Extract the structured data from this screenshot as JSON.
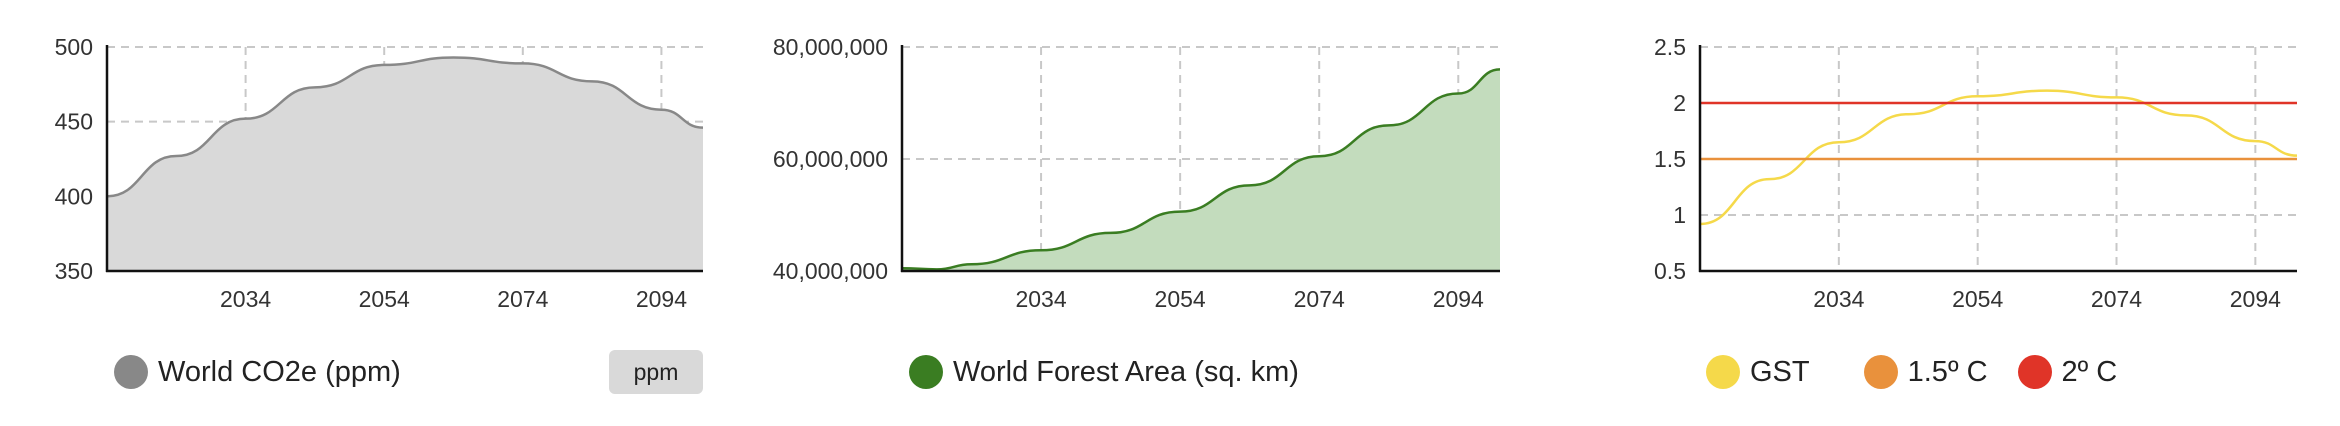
{
  "chart_data": [
    {
      "type": "area",
      "x_ticks": [
        "2034",
        "2054",
        "2074",
        "2094"
      ],
      "x_tick_values": [
        2034,
        2054,
        2074,
        2094
      ],
      "xlim": [
        2014,
        2100
      ],
      "y_ticks": [
        "350",
        "400",
        "450",
        "500"
      ],
      "y_tick_values": [
        350,
        400,
        450,
        500
      ],
      "ylim": [
        350,
        500
      ],
      "grid": true,
      "series": [
        {
          "name": "World CO2e (ppm)",
          "color": "#888888",
          "fill": "#d9d9d9",
          "x": [
            2014,
            2024,
            2034,
            2044,
            2054,
            2064,
            2074,
            2084,
            2094,
            2100
          ],
          "values": [
            400,
            427,
            452,
            473,
            488,
            493,
            489,
            477,
            458,
            446
          ]
        }
      ],
      "unit_button": "ppm"
    },
    {
      "type": "area",
      "x_ticks": [
        "2034",
        "2054",
        "2074",
        "2094"
      ],
      "x_tick_values": [
        2034,
        2054,
        2074,
        2094
      ],
      "xlim": [
        2014,
        2100
      ],
      "y_ticks": [
        "40,000,000",
        "60,000,000",
        "80,000,000"
      ],
      "y_tick_values": [
        40000000,
        60000000,
        80000000
      ],
      "ylim": [
        40000000,
        80000000
      ],
      "grid": true,
      "series": [
        {
          "name": "World Forest Area (sq. km)",
          "color": "#3a7d22",
          "fill": "#c3dcbd",
          "x": [
            2014,
            2019,
            2024,
            2034,
            2044,
            2054,
            2064,
            2074,
            2084,
            2094,
            2100
          ],
          "values": [
            40500000,
            40300000,
            41200000,
            43700000,
            46800000,
            50600000,
            55300000,
            60500000,
            66000000,
            71700000,
            76000000
          ]
        }
      ]
    },
    {
      "type": "line",
      "x_ticks": [
        "2034",
        "2054",
        "2074",
        "2094"
      ],
      "x_tick_values": [
        2034,
        2054,
        2074,
        2094
      ],
      "xlim": [
        2014,
        2100
      ],
      "y_ticks": [
        "0.5",
        "1",
        "1.5",
        "2",
        "2.5"
      ],
      "y_tick_values": [
        0.5,
        1,
        1.5,
        2,
        2.5
      ],
      "ylim": [
        0.5,
        2.5
      ],
      "grid": true,
      "series": [
        {
          "name": "GST",
          "color": "#f5d94a",
          "x": [
            2014,
            2024,
            2034,
            2044,
            2054,
            2064,
            2074,
            2084,
            2094,
            2100
          ],
          "values": [
            0.92,
            1.32,
            1.65,
            1.9,
            2.06,
            2.11,
            2.05,
            1.89,
            1.66,
            1.53
          ]
        },
        {
          "name": "1.5º C",
          "color": "#e9913c",
          "x": [
            2014,
            2100
          ],
          "values": [
            1.5,
            1.5
          ]
        },
        {
          "name": "2º C",
          "color": "#e03428",
          "x": [
            2014,
            2100
          ],
          "values": [
            2,
            2
          ]
        }
      ]
    }
  ]
}
